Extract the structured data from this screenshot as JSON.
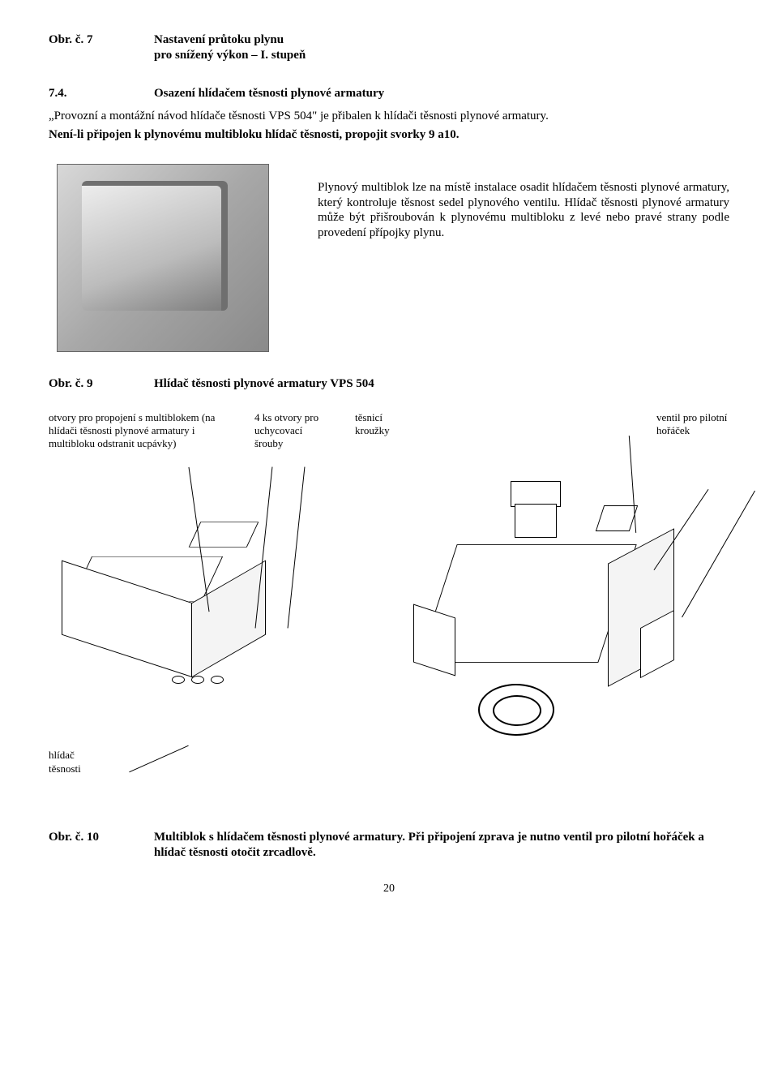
{
  "hdr": {
    "figLabel": "Obr. č. 7",
    "figTitle1": "Nastavení průtoku plynu",
    "figTitle2": "pro snížený výkon – I. stupeň"
  },
  "sec": {
    "num": "7.4.",
    "title": "Osazení hlídačem těsnosti plynové armatury"
  },
  "para": {
    "p1": "„Provozní a montážní návod hlídače těsnosti VPS 504\" je přibalen k hlídači těsnosti plynové armatury.",
    "p2": "Není-li připojen k plynovému multibloku hlídač těsnosti, propojit svorky 9 a10."
  },
  "sideText": "Plynový multiblok lze na místě instalace osadit hlídačem těsnosti plynové armatury, který kontroluje těsnost sedel plynového ventilu. Hlídač těsnosti plynové armatury může být přišroubován k plynovému multibloku z levé nebo pravé strany podle provedení přípojky plynu.",
  "fig9": {
    "label": "Obr. č. 9",
    "title": "Hlídač těsnosti plynové armatury VPS 504"
  },
  "annot": {
    "c1": "otvory pro propojení s multiblokem (na hlídači těsnosti plynové armatury i multibloku odstranit ucpávky)",
    "c2": "4 ks otvory pro uchycovací šrouby",
    "c3": "těsnicí kroužky",
    "c4": "ventil pro pilotní hořáček"
  },
  "leftAnnot": "hlídač těsnosti",
  "fig10": {
    "label": "Obr. č. 10",
    "title": "Multiblok s hlídačem těsnosti plynové armatury. Při připojení zprava je nutno ventil pro pilotní hořáček a hlídač těsnosti otočit zrcadlově."
  },
  "pageNum": "20"
}
